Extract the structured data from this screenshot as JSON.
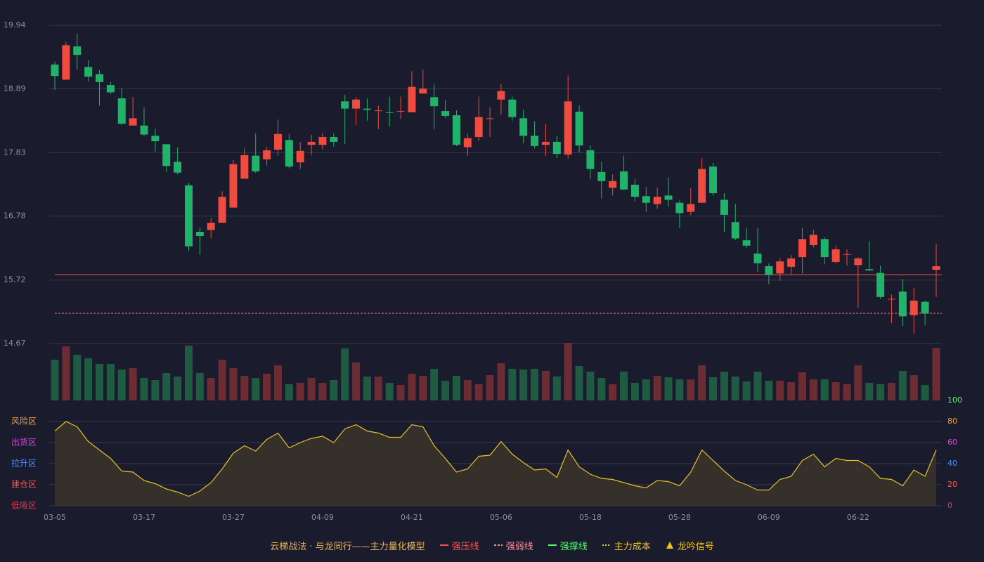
{
  "chart_data": [
    {
      "type": "candlestick",
      "categories": [
        "03-05",
        null,
        null,
        null,
        null,
        null,
        null,
        null,
        "03-17",
        null,
        null,
        null,
        null,
        null,
        null,
        null,
        "03-27",
        null,
        null,
        null,
        null,
        null,
        null,
        null,
        "04-09",
        null,
        null,
        null,
        null,
        null,
        null,
        null,
        "04-21",
        null,
        null,
        null,
        null,
        null,
        null,
        null,
        "05-06",
        null,
        null,
        null,
        null,
        null,
        null,
        null,
        "05-18",
        null,
        null,
        null,
        null,
        null,
        null,
        null,
        "05-28",
        null,
        null,
        null,
        null,
        null,
        null,
        null,
        "06-09",
        null,
        null,
        null,
        null,
        null,
        null,
        null,
        "06-22",
        null,
        null,
        null,
        null,
        null,
        null,
        null
      ],
      "open": [
        19.29,
        19.04,
        19.59,
        19.25,
        19.13,
        18.95,
        18.73,
        18.28,
        18.28,
        18.11,
        17.97,
        17.68,
        17.29,
        16.52,
        16.55,
        16.67,
        16.92,
        17.4,
        17.78,
        17.72,
        17.88,
        18.04,
        17.67,
        17.96,
        17.96,
        18.09,
        18.68,
        18.56,
        18.56,
        18.52,
        18.5,
        18.51,
        18.5,
        18.81,
        18.75,
        18.52,
        18.45,
        17.92,
        18.09,
        18.39,
        18.71,
        18.71,
        18.4,
        18.11,
        17.96,
        18.01,
        17.8,
        18.51,
        17.87,
        17.51,
        17.25,
        17.52,
        17.3,
        17.11,
        16.98,
        17.12,
        17.0,
        16.85,
        17.0,
        17.6,
        17.05,
        16.68,
        16.38,
        16.16,
        15.95,
        15.83,
        15.94,
        16.1,
        16.3,
        16.4,
        16.02,
        16.14,
        15.97,
        15.9,
        15.84,
        15.4,
        15.53,
        15.14,
        15.36,
        15.89
      ],
      "high": [
        19.34,
        19.66,
        19.8,
        19.36,
        19.2,
        19.0,
        18.9,
        18.75,
        18.58,
        18.23,
        17.97,
        17.92,
        17.33,
        16.59,
        16.75,
        17.19,
        17.71,
        17.9,
        18.15,
        17.92,
        18.38,
        18.14,
        18.01,
        18.13,
        18.16,
        18.15,
        18.79,
        18.75,
        18.73,
        18.61,
        18.76,
        18.76,
        19.18,
        19.21,
        18.97,
        18.7,
        18.53,
        18.14,
        18.76,
        18.58,
        18.97,
        18.76,
        18.54,
        18.35,
        18.31,
        18.11,
        19.11,
        18.61,
        17.95,
        17.68,
        17.47,
        17.78,
        17.39,
        17.26,
        17.25,
        17.42,
        17.04,
        17.24,
        17.74,
        17.66,
        17.16,
        16.98,
        16.58,
        16.58,
        16.0,
        16.08,
        16.14,
        16.58,
        16.55,
        16.43,
        16.29,
        16.23,
        16.1,
        16.36,
        15.96,
        15.48,
        15.74,
        15.59,
        15.38,
        16.32
      ],
      "low": [
        18.87,
        19.03,
        19.2,
        19.01,
        18.61,
        18.8,
        18.29,
        18.28,
        18.11,
        17.85,
        17.51,
        17.47,
        16.21,
        16.14,
        16.41,
        16.67,
        16.92,
        17.4,
        17.5,
        17.62,
        17.78,
        17.57,
        17.56,
        17.79,
        17.88,
        17.93,
        17.97,
        18.29,
        18.36,
        18.22,
        18.26,
        18.39,
        18.5,
        18.81,
        18.22,
        18.4,
        17.94,
        17.78,
        18.02,
        18.09,
        18.46,
        18.36,
        17.99,
        17.9,
        17.78,
        17.74,
        17.73,
        17.83,
        17.39,
        17.07,
        17.12,
        17.22,
        17.03,
        16.85,
        16.9,
        16.94,
        16.58,
        16.8,
        17.0,
        17.12,
        16.52,
        16.38,
        16.25,
        15.86,
        15.65,
        15.71,
        15.82,
        15.83,
        16.26,
        15.98,
        16.0,
        15.96,
        15.26,
        15.87,
        15.41,
        15.01,
        14.96,
        14.83,
        14.97,
        15.44
      ],
      "close": [
        19.1,
        19.61,
        19.45,
        19.09,
        19.0,
        18.83,
        18.31,
        18.4,
        18.13,
        18.02,
        17.61,
        17.5,
        16.28,
        16.45,
        16.67,
        17.1,
        17.64,
        17.79,
        17.52,
        17.87,
        18.14,
        17.6,
        17.86,
        18.01,
        18.09,
        18.01,
        18.56,
        18.71,
        18.54,
        18.53,
        18.49,
        18.52,
        18.92,
        18.89,
        18.6,
        18.44,
        17.96,
        18.07,
        18.42,
        18.4,
        18.85,
        18.42,
        18.11,
        17.94,
        18.01,
        17.81,
        18.68,
        17.95,
        17.56,
        17.36,
        17.36,
        17.22,
        17.1,
        17.0,
        17.1,
        17.05,
        16.83,
        16.98,
        17.56,
        17.16,
        16.8,
        16.41,
        16.29,
        16.0,
        15.81,
        16.03,
        16.08,
        16.4,
        16.47,
        16.1,
        16.23,
        16.15,
        16.08,
        15.88,
        15.44,
        15.41,
        15.12,
        15.38,
        15.17,
        15.95
      ],
      "up_color": "#ef4b3f",
      "down_color": "#22b36b",
      "ylim": [
        14.67,
        19.94
      ],
      "yticks": [
        14.67,
        15.72,
        16.78,
        17.83,
        18.89,
        19.94
      ],
      "grid": true,
      "levels": [
        {
          "value": 15.81,
          "color": "#ef4b3f",
          "style": "solid"
        },
        {
          "value": 15.17,
          "color": "#ff7f8a",
          "style": "dashed"
        }
      ]
    },
    {
      "type": "bar",
      "values": [
        58,
        77,
        65,
        60,
        52,
        52,
        44,
        46,
        32,
        29,
        39,
        34,
        78,
        39,
        32,
        58,
        46,
        35,
        32,
        38,
        50,
        23,
        25,
        32,
        25,
        29,
        74,
        54,
        34,
        34,
        25,
        22,
        38,
        35,
        45,
        28,
        35,
        29,
        23,
        36,
        53,
        45,
        44,
        45,
        42,
        34,
        82,
        49,
        41,
        32,
        23,
        41,
        25,
        30,
        35,
        33,
        30,
        30,
        50,
        33,
        41,
        34,
        27,
        41,
        28,
        28,
        26,
        40,
        30,
        30,
        26,
        23,
        50,
        25,
        23,
        25,
        42,
        36,
        22,
        75
      ],
      "up_color": "#6b2c34",
      "down_color": "#1f5a43"
    },
    {
      "type": "line",
      "values": [
        71,
        80,
        75,
        61,
        53,
        45,
        33,
        32,
        24,
        21,
        16,
        13,
        9,
        14,
        22,
        35,
        50,
        57,
        52,
        63,
        69,
        55,
        60,
        64,
        66,
        60,
        73,
        77,
        71,
        69,
        65,
        65,
        77,
        75,
        57,
        45,
        32,
        35,
        47,
        48,
        61,
        49,
        41,
        34,
        35,
        27,
        53,
        37,
        30,
        26,
        25,
        22,
        19,
        17,
        24,
        23,
        19,
        32,
        53,
        43,
        33,
        24,
        20,
        15,
        15,
        25,
        28,
        43,
        49,
        37,
        45,
        43,
        43,
        37,
        26,
        25,
        19,
        34,
        28,
        53
      ],
      "color": "#e6c12a",
      "fill": "#35312a",
      "ylim": [
        0,
        100
      ],
      "yticks": [
        0,
        20,
        40,
        60,
        80,
        100
      ],
      "ytick_colors": [
        "#ff3050",
        "#ff6040",
        "#4a90ff",
        "#e040e0",
        "#f0a030",
        "#4dff6a"
      ],
      "zones": [
        {
          "value": 80,
          "label": "风险区",
          "color": "#f0a030"
        },
        {
          "value": 60,
          "label": "出货区",
          "color": "#e040e0"
        },
        {
          "value": 40,
          "label": "拉升区",
          "color": "#4a90ff"
        },
        {
          "value": 20,
          "label": "建仓区",
          "color": "#ff5050"
        },
        {
          "value": 0,
          "label": "低吸区",
          "color": "#ff3050"
        }
      ]
    }
  ],
  "legend": {
    "title": "云梯战法 · 与龙同行——主力量化模型",
    "title_color": "#e8b45a",
    "items": [
      {
        "name": "强压线",
        "color": "#ff4d4d",
        "style": "line"
      },
      {
        "name": "强弱线",
        "color": "#ff8a9a",
        "style": "dashed"
      },
      {
        "name": "强撑线",
        "color": "#4dff6a",
        "style": "line"
      },
      {
        "name": "主力成本",
        "color": "#f0c419",
        "style": "dotted"
      },
      {
        "name": "龙吟信号",
        "color": "#f0c419",
        "style": "triangle"
      }
    ]
  }
}
